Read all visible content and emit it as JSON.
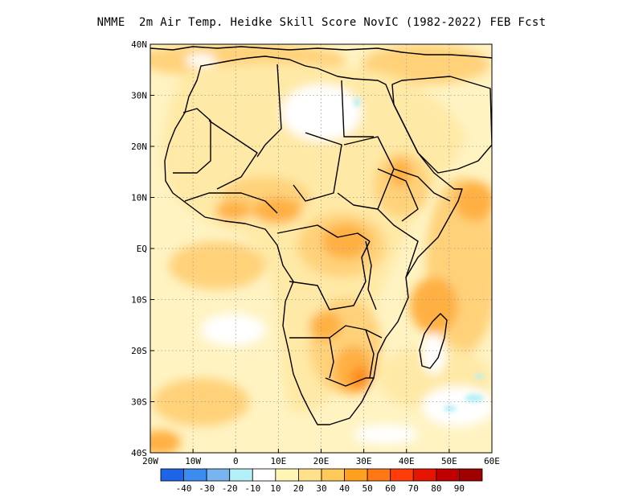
{
  "title": "NMME  2m Air Temp. Heidke Skill Score NovIC (1982-2022) FEB Fcst",
  "map": {
    "lon_range": [
      -20,
      60
    ],
    "lat_range": [
      -40,
      40
    ],
    "lat_labels": [
      "40N",
      "30N",
      "20N",
      "10N",
      "EQ",
      "10S",
      "20S",
      "30S",
      "40S"
    ],
    "lon_labels": [
      "20W",
      "10W",
      "0",
      "10E",
      "20E",
      "30E",
      "40E",
      "50E",
      "60E"
    ]
  },
  "colorbar": {
    "labels": [
      "-40",
      "-30",
      "-20",
      "-10",
      "10",
      "20",
      "30",
      "40",
      "50",
      "60",
      "70",
      "80",
      "90"
    ],
    "colors": [
      "#1e64e6",
      "#3c8cf0",
      "#78b4f0",
      "#b4f0f8",
      "#ffffff",
      "#fff5b4",
      "#ffe08c",
      "#ffc85a",
      "#ffa01e",
      "#ff7814",
      "#ff3c0a",
      "#e61400",
      "#c00000",
      "#a00000"
    ]
  },
  "colors": {
    "sea": "#fff3c2",
    "sea_dark": "#ffe7a0",
    "land_light": "#ffe9a6",
    "land_mid": "#ffd27a",
    "land_strong": "#ffb042",
    "hot": "#ff8c1e",
    "white": "#ffffff",
    "cyan": "#b4f0f8",
    "border": "#000000",
    "grid": "#9a9a9a"
  }
}
